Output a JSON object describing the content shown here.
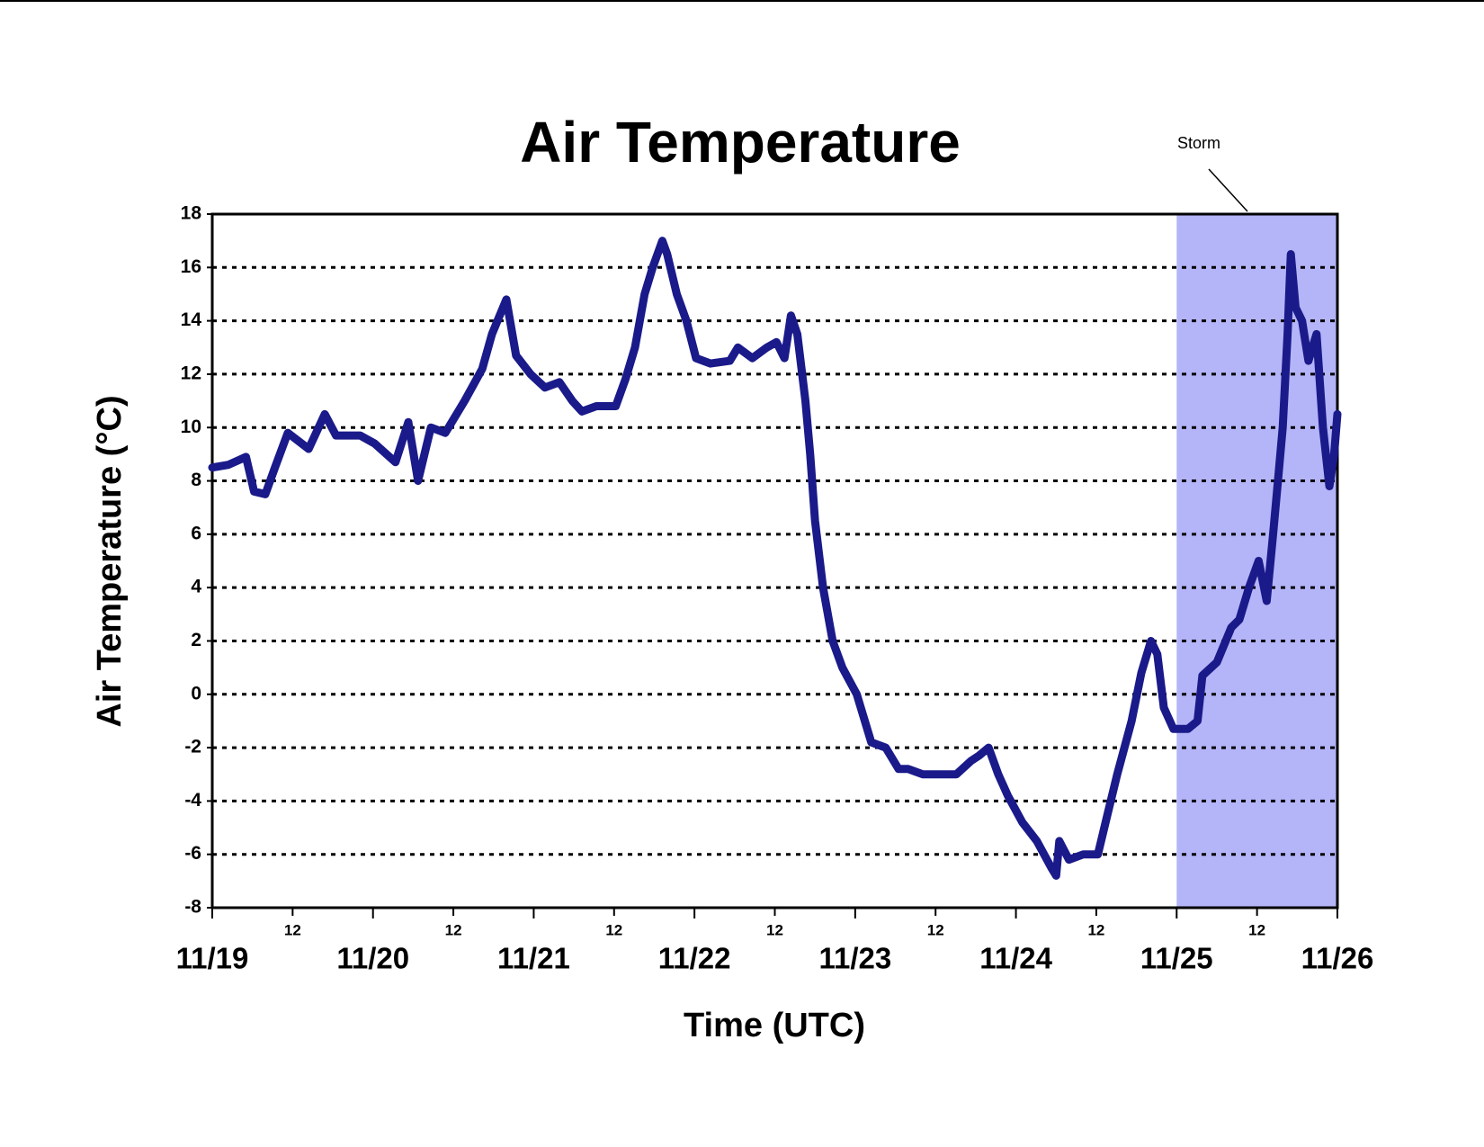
{
  "chart_data": {
    "type": "line",
    "title": "Air Temperature",
    "x_label": "Time (UTC)",
    "y_label": "Air Temperature (°C)",
    "xlim": [
      0,
      7
    ],
    "xticks": [
      {
        "value": 0,
        "label": "11/19"
      },
      {
        "value": 1,
        "label": "11/20"
      },
      {
        "value": 2,
        "label": "11/21"
      },
      {
        "value": 3,
        "label": "11/22"
      },
      {
        "value": 4,
        "label": "11/23"
      },
      {
        "value": 5,
        "label": "11/24"
      },
      {
        "value": 6,
        "label": "11/25"
      },
      {
        "value": 7,
        "label": "11/26"
      }
    ],
    "xticks_minor": [
      {
        "value": 0.5,
        "label": "12"
      },
      {
        "value": 1.5,
        "label": "12"
      },
      {
        "value": 2.5,
        "label": "12"
      },
      {
        "value": 3.5,
        "label": "12"
      },
      {
        "value": 4.5,
        "label": "12"
      },
      {
        "value": 5.5,
        "label": "12"
      },
      {
        "value": 6.5,
        "label": "12"
      }
    ],
    "ylim": [
      -8,
      18
    ],
    "yticks": [
      -8,
      -6,
      -4,
      -2,
      0,
      2,
      4,
      6,
      8,
      10,
      12,
      14,
      16,
      18
    ],
    "grid": true,
    "storm": {
      "label": "Storm",
      "start": 6,
      "end": 7,
      "color": "#b4b4f8"
    },
    "series": [
      {
        "name": "Air Temperature",
        "color": "#1a1a8a",
        "x": [
          0,
          0.1,
          0.21,
          0.26,
          0.33,
          0.39,
          0.47,
          0.6,
          0.7,
          0.77,
          0.92,
          1.01,
          1.14,
          1.22,
          1.28,
          1.36,
          1.45,
          1.57,
          1.68,
          1.74,
          1.83,
          1.89,
          1.98,
          2.07,
          2.16,
          2.24,
          2.3,
          2.39,
          2.51,
          2.57,
          2.63,
          2.69,
          2.74,
          2.8,
          2.83,
          2.89,
          2.95,
          3.01,
          3.1,
          3.22,
          3.27,
          3.36,
          3.45,
          3.51,
          3.56,
          3.6,
          3.64,
          3.69,
          3.72,
          3.75,
          3.8,
          3.86,
          3.92,
          4.01,
          4.1,
          4.19,
          4.27,
          4.33,
          4.42,
          4.51,
          4.63,
          4.72,
          4.77,
          4.83,
          4.89,
          4.95,
          5.04,
          5.13,
          5.22,
          5.25,
          5.27,
          5.33,
          5.42,
          5.51,
          5.57,
          5.63,
          5.72,
          5.78,
          5.84,
          5.88,
          5.92,
          5.98,
          6.07,
          6.13,
          6.16,
          6.25,
          6.34,
          6.39,
          6.45,
          6.51,
          6.56,
          6.6,
          6.63,
          6.66,
          6.69,
          6.71,
          6.74,
          6.78,
          6.82,
          6.87,
          6.91,
          6.95,
          6.98,
          7.0
        ],
        "values": [
          8.5,
          8.6,
          8.9,
          7.6,
          7.5,
          8.5,
          9.8,
          9.2,
          10.5,
          9.7,
          9.7,
          9.4,
          8.7,
          10.2,
          8.0,
          10.0,
          9.8,
          11.0,
          12.2,
          13.5,
          14.8,
          12.7,
          12.0,
          11.5,
          11.7,
          11.0,
          10.6,
          10.8,
          10.8,
          11.8,
          13.0,
          15.0,
          16.0,
          17.0,
          16.5,
          15.0,
          14.0,
          12.6,
          12.4,
          12.5,
          13.0,
          12.6,
          13.0,
          13.2,
          12.6,
          14.2,
          13.5,
          11.0,
          9.0,
          6.5,
          4.0,
          2.0,
          1.0,
          0.0,
          -1.8,
          -2.0,
          -2.8,
          -2.8,
          -3.0,
          -3.0,
          -3.0,
          -2.5,
          -2.3,
          -2.0,
          -3.0,
          -3.8,
          -4.8,
          -5.5,
          -6.5,
          -6.8,
          -5.5,
          -6.2,
          -6.0,
          -6.0,
          -4.5,
          -3.0,
          -1.0,
          0.8,
          2.0,
          1.5,
          -0.5,
          -1.3,
          -1.3,
          -1.0,
          0.7,
          1.2,
          2.5,
          2.8,
          4.0,
          5.0,
          3.5,
          6.0,
          8.0,
          10.0,
          13.5,
          16.5,
          14.5,
          14.0,
          12.5,
          13.5,
          10.0,
          7.8,
          9.0,
          10.5
        ]
      }
    ]
  }
}
